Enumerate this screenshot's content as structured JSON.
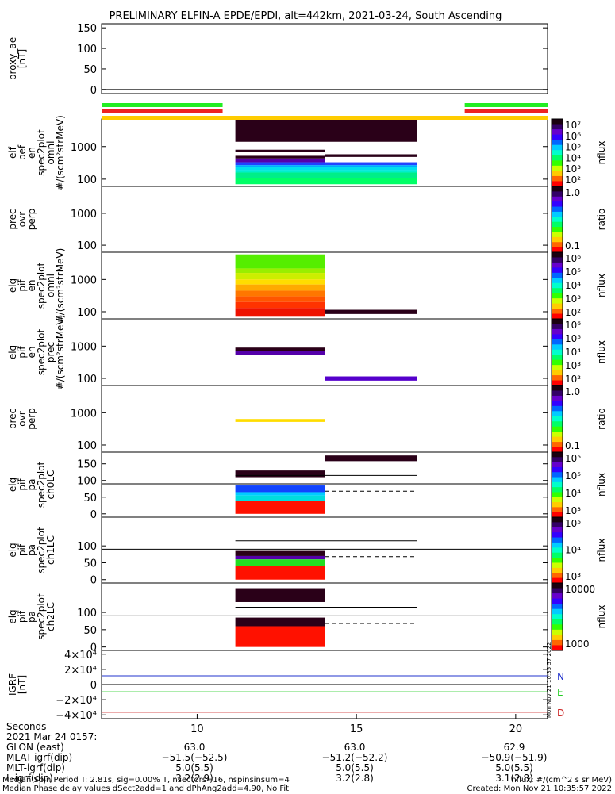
{
  "title": "PRELIMINARY ELFIN-A EPDE/EPDI, alt=442km, 2021-03-24, South Ascending",
  "panels": [
    {
      "id": "proxy_ae",
      "ylabel": [
        "proxy_ae",
        "[nT]"
      ],
      "yticks": [
        {
          "v": 0,
          "label": "0"
        },
        {
          "v": 50,
          "label": "50"
        },
        {
          "v": 100,
          "label": "100"
        },
        {
          "v": 150,
          "label": "150"
        }
      ],
      "ylim": [
        -10,
        160
      ],
      "log": false,
      "colorbar": {
        "ticks": [],
        "label": ""
      }
    },
    {
      "id": "elf_en_omni",
      "ylabel": [
        "elf",
        "pef",
        "en",
        "spec2plot",
        "omni",
        "#/(scm²strMeV)"
      ],
      "yticks": [
        {
          "v": 100,
          "label": "100"
        },
        {
          "v": 1000,
          "label": "1000"
        }
      ],
      "ylim": [
        60,
        7000
      ],
      "log": true,
      "colorbar": {
        "scale": "rainbow",
        "label": "nflux",
        "ticks": [
          "10⁷",
          "10⁶",
          "10⁵",
          "10⁴",
          "10³",
          "10²"
        ]
      }
    },
    {
      "id": "prec_ovr_perp_e",
      "ylabel": [
        "prec",
        "ovr",
        "perp"
      ],
      "yticks": [
        {
          "v": 100,
          "label": "100"
        },
        {
          "v": 1000,
          "label": "1000"
        }
      ],
      "ylim": [
        60,
        7000
      ],
      "log": true,
      "colorbar": {
        "scale": "rainbow",
        "label": "ratio",
        "ticks": [
          "1.0",
          "0.1"
        ]
      }
    },
    {
      "id": "eli_en_omni",
      "ylabel": [
        "elg",
        "pif",
        "en",
        "spec2plot",
        "omni",
        "#/(scm²strMeV)"
      ],
      "yticks": [
        {
          "v": 100,
          "label": "100"
        },
        {
          "v": 1000,
          "label": "1000"
        }
      ],
      "ylim": [
        60,
        7000
      ],
      "log": true,
      "colorbar": {
        "scale": "rainbow",
        "label": "nflux",
        "ticks": [
          "10⁶",
          "10⁵",
          "10⁴",
          "10³",
          "10²"
        ]
      }
    },
    {
      "id": "eli_en_prec",
      "ylabel": [
        "elg",
        "pif",
        "en",
        "spec2plot",
        "prec",
        "#/(scm²strMeV)"
      ],
      "yticks": [
        {
          "v": 100,
          "label": "100"
        },
        {
          "v": 1000,
          "label": "1000"
        }
      ],
      "ylim": [
        60,
        7000
      ],
      "log": true,
      "colorbar": {
        "scale": "rainbow",
        "label": "nflux",
        "ticks": [
          "10⁶",
          "10⁵",
          "10⁴",
          "10³",
          "10²"
        ]
      }
    },
    {
      "id": "prec_ovr_perp_i",
      "ylabel": [
        "prec",
        "ovr",
        "perp"
      ],
      "yticks": [
        {
          "v": 100,
          "label": "100"
        },
        {
          "v": 1000,
          "label": "1000"
        }
      ],
      "ylim": [
        60,
        7000
      ],
      "log": true,
      "colorbar": {
        "scale": "rainbow",
        "label": "ratio",
        "ticks": [
          "1.0",
          "0.1"
        ]
      }
    },
    {
      "id": "pa_ch0",
      "ylabel": [
        "elg",
        "pif",
        "pa",
        "spec2plot",
        "ch0LC"
      ],
      "yticks": [
        {
          "v": 0,
          "label": "0"
        },
        {
          "v": 50,
          "label": "50"
        },
        {
          "v": 100,
          "label": "100"
        },
        {
          "v": 150,
          "label": "150"
        }
      ],
      "ylim": [
        -10,
        185
      ],
      "log": false,
      "colorbar": {
        "scale": "rainbow",
        "label": "nflux",
        "ticks": [
          "10⁵",
          "10⁵",
          "10⁴",
          "10³"
        ]
      }
    },
    {
      "id": "pa_ch1",
      "ylabel": [
        "elg",
        "pif",
        "pa",
        "spec2plot",
        "ch1LC"
      ],
      "yticks": [
        {
          "v": 0,
          "label": "0"
        },
        {
          "v": 50,
          "label": "50"
        },
        {
          "v": 100,
          "label": "100"
        }
      ],
      "ylim": [
        -10,
        185
      ],
      "log": false,
      "colorbar": {
        "scale": "rainbow",
        "label": "nflux",
        "ticks": [
          "10⁵",
          "10⁴",
          "10³"
        ]
      }
    },
    {
      "id": "pa_ch2",
      "ylabel": [
        "elg",
        "pif",
        "pa",
        "spec2plot",
        "ch2LC"
      ],
      "yticks": [
        {
          "v": 0,
          "label": "0"
        },
        {
          "v": 50,
          "label": "50"
        },
        {
          "v": 100,
          "label": "100"
        }
      ],
      "ylim": [
        -10,
        185
      ],
      "log": false,
      "colorbar": {
        "scale": "rainbow",
        "label": "nflux",
        "ticks": [
          "10000",
          "1000"
        ]
      }
    },
    {
      "id": "igrf",
      "ylabel": [
        "IGRF",
        "[nT]"
      ],
      "yticks": [
        {
          "v": -40000,
          "label": "−4×10⁴"
        },
        {
          "v": -20000,
          "label": "−2×10⁴"
        },
        {
          "v": 0,
          "label": "0"
        },
        {
          "v": 20000,
          "label": "2×10⁴"
        },
        {
          "v": 40000,
          "label": "4×10⁴"
        }
      ],
      "ylim": [
        -45000,
        45000
      ],
      "log": false,
      "colorbar": {
        "ticks": [],
        "label": ""
      }
    }
  ],
  "chart_data": {
    "type": "heatmap",
    "x_range": [
      7,
      21
    ],
    "x_ticks": [
      {
        "v": 10,
        "label": "10"
      },
      {
        "v": 15,
        "label": "15"
      },
      {
        "v": 20,
        "label": "20"
      }
    ],
    "quality_bars": [
      {
        "color": "#22ee22",
        "segments": [
          [
            7.0,
            10.8
          ],
          [
            18.4,
            21.0
          ]
        ]
      },
      {
        "color": "#ee2222",
        "segments": [
          [
            7.0,
            10.8
          ],
          [
            18.4,
            21.0
          ]
        ]
      },
      {
        "color": "#ffcc00",
        "segments": [
          [
            7.0,
            21.0
          ]
        ]
      }
    ],
    "spectra": [
      {
        "panel": "elf_en_omni",
        "blocks": [
          {
            "x": [
              11.2,
              16.9
            ],
            "y": [
              1400,
              7000
            ],
            "color": "#2a0018"
          },
          {
            "x": [
              11.2,
              14.0
            ],
            "y": [
              680,
              800
            ],
            "color": "#2a0018"
          },
          {
            "x": [
              11.2,
              14.0
            ],
            "y": [
              430,
              520
            ],
            "color": "#2a0018"
          },
          {
            "x": [
              14.0,
              16.9
            ],
            "y": [
              480,
              580
            ],
            "color": "#2a0018"
          },
          {
            "x": [
              11.2,
              14.0
            ],
            "y": [
              330,
              430
            ],
            "color": "#5500aa"
          },
          {
            "x": [
              11.2,
              14.0
            ],
            "y": [
              270,
              330
            ],
            "color": "#2040ff"
          },
          {
            "x": [
              14.0,
              16.9
            ],
            "y": [
              270,
              330
            ],
            "color": "#2244ff"
          },
          {
            "x": [
              11.2,
              16.9
            ],
            "y": [
              230,
              270
            ],
            "color": "#00aaff"
          },
          {
            "x": [
              11.2,
              16.9
            ],
            "y": [
              190,
              230
            ],
            "color": "#00e0ee"
          },
          {
            "x": [
              11.2,
              16.9
            ],
            "y": [
              160,
              190
            ],
            "color": "#00eecc"
          },
          {
            "x": [
              11.2,
              16.9
            ],
            "y": [
              110,
              160
            ],
            "color": "#00ee88"
          },
          {
            "x": [
              11.2,
              16.9
            ],
            "y": [
              70,
              110
            ],
            "color": "#00ff66"
          }
        ]
      },
      {
        "panel": "eli_en_omni",
        "blocks": [
          {
            "x": [
              11.2,
              14.0
            ],
            "y": [
              2200,
              6000
            ],
            "color": "#55ee00"
          },
          {
            "x": [
              11.2,
              14.0
            ],
            "y": [
              1600,
              2200
            ],
            "color": "#99ee00"
          },
          {
            "x": [
              11.2,
              14.0
            ],
            "y": [
              1000,
              1600
            ],
            "color": "#ccee00"
          },
          {
            "x": [
              11.2,
              14.0
            ],
            "y": [
              700,
              1000
            ],
            "color": "#ffdd00"
          },
          {
            "x": [
              11.2,
              14.0
            ],
            "y": [
              450,
              700
            ],
            "color": "#ffaa00"
          },
          {
            "x": [
              11.2,
              14.0
            ],
            "y": [
              300,
              450
            ],
            "color": "#ff7700"
          },
          {
            "x": [
              11.2,
              14.0
            ],
            "y": [
              200,
              300
            ],
            "color": "#ff5500"
          },
          {
            "x": [
              11.2,
              14.0
            ],
            "y": [
              130,
              200
            ],
            "color": "#ff3300"
          },
          {
            "x": [
              11.2,
              14.0
            ],
            "y": [
              70,
              130
            ],
            "color": "#ee1100"
          },
          {
            "x": [
              14.0,
              16.9
            ],
            "y": [
              85,
              115
            ],
            "color": "#2a0018"
          }
        ]
      },
      {
        "panel": "eli_en_prec",
        "blocks": [
          {
            "x": [
              11.2,
              14.0
            ],
            "y": [
              700,
              900
            ],
            "color": "#2a0018"
          },
          {
            "x": [
              11.2,
              14.0
            ],
            "y": [
              530,
              700
            ],
            "color": "#5500aa"
          },
          {
            "x": [
              14.0,
              16.9
            ],
            "y": [
              85,
              115
            ],
            "color": "#5500cc"
          }
        ]
      },
      {
        "panel": "prec_ovr_perp_i",
        "blocks": [
          {
            "x": [
              11.2,
              14.0
            ],
            "y": [
              520,
              640
            ],
            "color": "#ffdd00"
          }
        ]
      },
      {
        "panel": "pa_ch0",
        "blocks": [
          {
            "x": [
              11.2,
              14.0
            ],
            "y": [
              110,
              130
            ],
            "color": "#2a0018"
          },
          {
            "x": [
              11.2,
              14.0
            ],
            "y": [
              65,
              85
            ],
            "color": "#1144ff"
          },
          {
            "x": [
              11.2,
              14.0
            ],
            "y": [
              55,
              65
            ],
            "color": "#00ccff"
          },
          {
            "x": [
              11.2,
              14.0
            ],
            "y": [
              38,
              55
            ],
            "color": "#00dddd"
          },
          {
            "x": [
              11.2,
              14.0
            ],
            "y": [
              0,
              38
            ],
            "color": "#ff1100"
          },
          {
            "x": [
              14.0,
              16.9
            ],
            "y": [
              158,
              175
            ],
            "color": "#2a0018"
          }
        ],
        "lines": [
          {
            "y": 115,
            "x": [
              11.2,
              16.9
            ],
            "dash": false
          },
          {
            "y": 68,
            "x": [
              14.0,
              16.9
            ],
            "dash": true
          }
        ]
      },
      {
        "panel": "pa_ch1",
        "blocks": [
          {
            "x": [
              11.2,
              14.0
            ],
            "y": [
              70,
              85
            ],
            "color": "#2a0018"
          },
          {
            "x": [
              11.2,
              14.0
            ],
            "y": [
              60,
              70
            ],
            "color": "#5500aa"
          },
          {
            "x": [
              11.2,
              14.0
            ],
            "y": [
              40,
              60
            ],
            "color": "#22dd22"
          },
          {
            "x": [
              11.2,
              14.0
            ],
            "y": [
              0,
              40
            ],
            "color": "#ff1100"
          }
        ],
        "lines": [
          {
            "y": 115,
            "x": [
              11.2,
              16.9
            ],
            "dash": false
          },
          {
            "y": 68,
            "x": [
              14.0,
              16.9
            ],
            "dash": true
          }
        ]
      },
      {
        "panel": "pa_ch2",
        "blocks": [
          {
            "x": [
              11.2,
              14.0
            ],
            "y": [
              130,
              170
            ],
            "color": "#2a0018"
          },
          {
            "x": [
              11.2,
              14.0
            ],
            "y": [
              60,
              85
            ],
            "color": "#2a0018"
          },
          {
            "x": [
              11.2,
              14.0
            ],
            "y": [
              0,
              60
            ],
            "color": "#ff1100"
          }
        ],
        "lines": [
          {
            "y": 115,
            "x": [
              11.2,
              16.9
            ],
            "dash": false
          },
          {
            "y": 68,
            "x": [
              14.0,
              16.9
            ],
            "dash": true
          }
        ]
      }
    ],
    "igrf_series": [
      {
        "name": "N",
        "color": "#2233cc",
        "value": 11500
      },
      {
        "name": "E",
        "color": "#22cc22",
        "value": -9500
      },
      {
        "name": "D",
        "color": "#cc2222",
        "value": -36500
      }
    ],
    "hline_zero_panels": [
      "proxy_ae",
      "igrf"
    ]
  },
  "footer": {
    "row_labels": [
      "Seconds",
      "2021 Mar 24 0157:",
      "GLON (east)",
      "MLAT-igrf(dip)",
      "MLT-igrf(dip)",
      "L-igrf(dip)"
    ],
    "columns": [
      {
        "x": 10,
        "values": [
          "10",
          "",
          "",
          "",
          "",
          ""
        ]
      },
      {
        "x": 15,
        "values": [
          "15",
          "",
          "63.0",
          "−51.2(−52.2)",
          "5.0(5.5)",
          "3.2(2.8)"
        ]
      },
      {
        "x": 20,
        "values": [
          "20",
          "",
          "62.9",
          "−50.9(−51.9)",
          "5.0(5.5)",
          "3.1(2.8)"
        ]
      }
    ],
    "col1": {
      "values": [
        "63.0",
        "−51.5(−52.5)",
        "5.0(5.5)",
        "3.2(2.9)"
      ]
    },
    "note1": "Median Spin Period T: 2.81s, sig=0.00% T, nsectors=16, nspinsinsum=4",
    "note2": "Median Phase delay values dSect2add=1 and dPhAng2add=4.90, No Fit",
    "nflux_units": "nflux: #/(cm^2 s sr MeV)",
    "created": "Created: Mon Nov 21 10:35:57 2022",
    "stamp": "Mon Nov 21 10:35:57 2022"
  }
}
